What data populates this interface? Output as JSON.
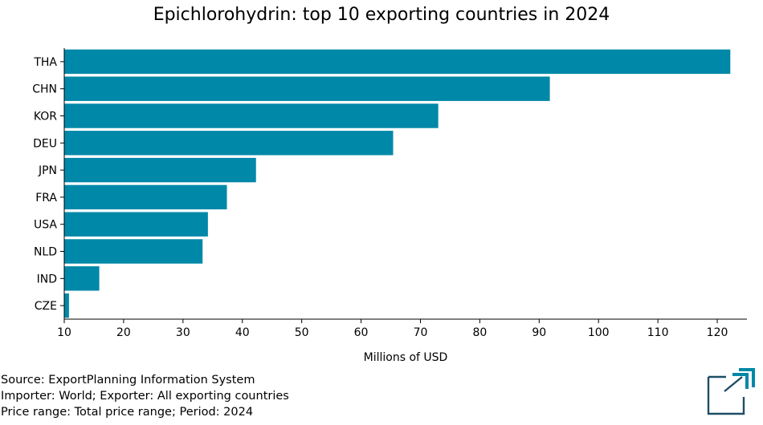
{
  "chart_data": {
    "type": "bar",
    "orientation": "horizontal",
    "title": "Epichlorohydrin: top 10 exporting countries in 2024",
    "categories": [
      "THA",
      "CHN",
      "KOR",
      "DEU",
      "JPN",
      "FRA",
      "USA",
      "NLD",
      "IND",
      "CZE"
    ],
    "values": [
      122.2,
      91.8,
      73.0,
      65.4,
      42.3,
      37.4,
      34.2,
      33.3,
      15.9,
      10.8
    ],
    "xlabel": "Millions of USD",
    "ylabel": "",
    "xlim": [
      10,
      125
    ],
    "xticks": [
      10,
      20,
      30,
      40,
      50,
      60,
      70,
      80,
      90,
      100,
      110,
      120
    ],
    "bar_color": "#0088a8",
    "grid": false,
    "legend": "none"
  },
  "footer": {
    "source": "Source: ExportPlanning Information System",
    "importer": "Importer: World; Exporter: All exporting countries",
    "price": "Price range: Total price range; Period: 2024"
  },
  "logo": {
    "icon": "exportplanning-logo-icon",
    "color": "#0088a8",
    "dark_color": "#1f4e66"
  }
}
